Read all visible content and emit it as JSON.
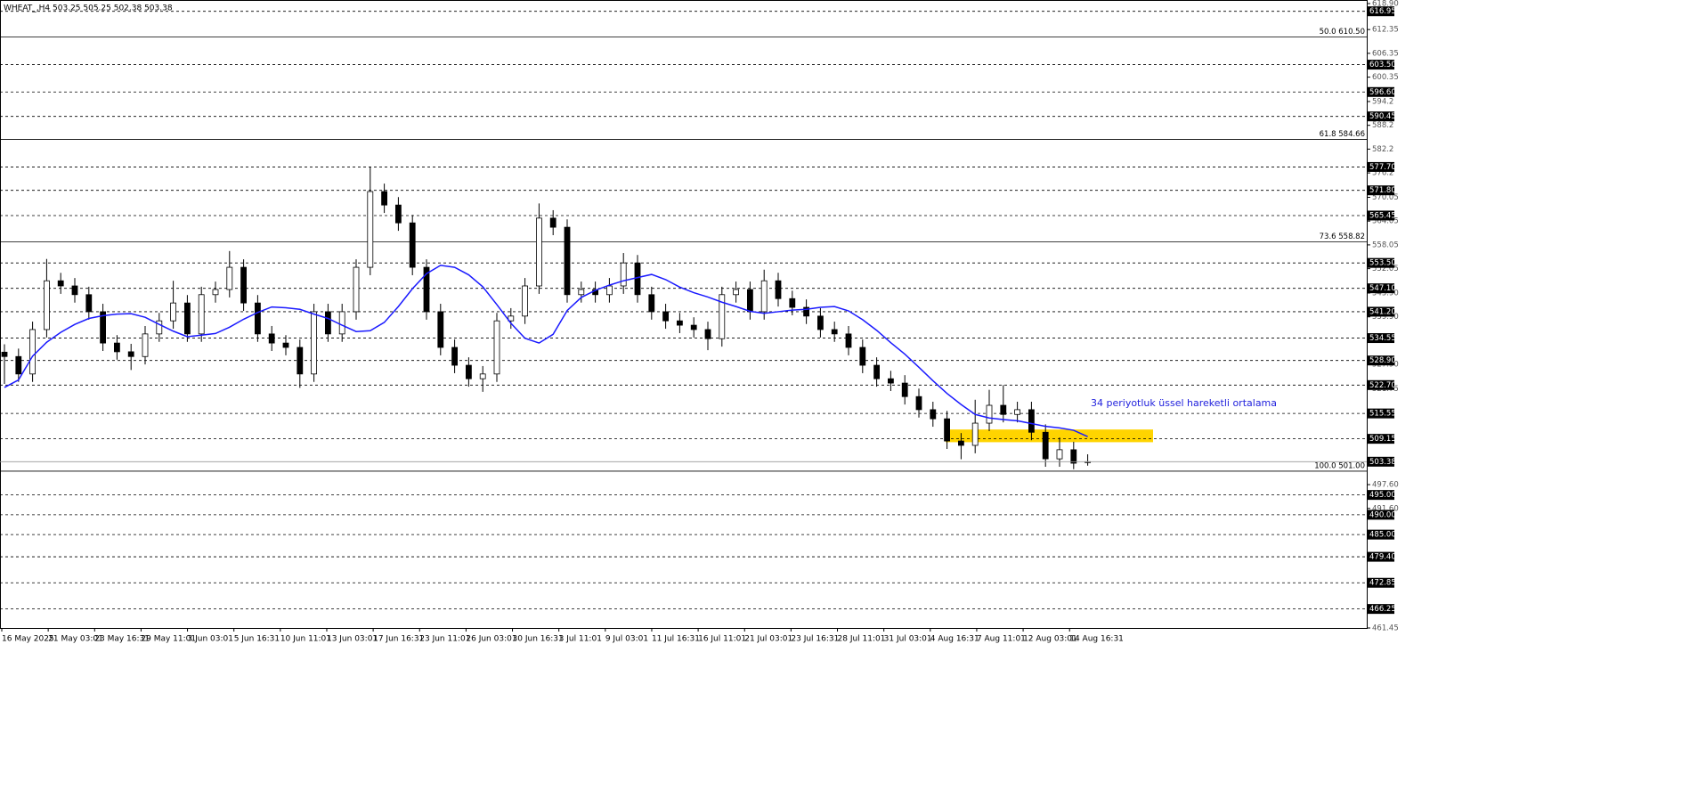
{
  "chart_data": {
    "type": "candlestick",
    "title": "WHEAT_,H4  503.25 505.25 502.38 503.38",
    "ylim": [
      461.45,
      618.9
    ],
    "yticks": [
      {
        "value": 618.9,
        "label": "618.90"
      },
      612.35,
      606.35,
      600.35,
      594.2,
      588.2,
      582.2,
      576.2,
      570.05,
      564.05,
      558.05,
      552.05,
      {
        "value": 545.9,
        "label": "545.90"
      },
      {
        "value": 539.9,
        "label": "539.90"
      },
      {
        "value": 527.9,
        "label": "527.90"
      },
      521.75,
      {
        "value": 497.6,
        "label": "497.60"
      },
      {
        "value": 491.6,
        "label": "491.60"
      },
      461.45
    ],
    "xticks": [
      {
        "value": 0,
        "label": "16 May 2025"
      },
      {
        "value": 3.3,
        "label": "21 May 03:01"
      },
      {
        "value": 6.6,
        "label": "23 May 16:31"
      },
      {
        "value": 9.9,
        "label": "29 May 11:01"
      },
      {
        "value": 13.2,
        "label": "3 Jun 03:01"
      },
      {
        "value": 16.5,
        "label": "5 Jun 16:31"
      },
      {
        "value": 19.8,
        "label": "10 Jun 11:01"
      },
      {
        "value": 23.1,
        "label": "13 Jun 03:01"
      },
      {
        "value": 26.4,
        "label": "17 Jun 16:31"
      },
      {
        "value": 29.7,
        "label": "23 Jun 11:01"
      },
      {
        "value": 33,
        "label": "26 Jun 03:01"
      },
      {
        "value": 36.3,
        "label": "30 Jun 16:31"
      },
      {
        "value": 39.6,
        "label": "3 Jul 11:01"
      },
      {
        "value": 42.9,
        "label": "9 Jul 03:01"
      },
      {
        "value": 46.2,
        "label": "11 Jul 16:31"
      },
      {
        "value": 49.5,
        "label": "16 Jul 11:01"
      },
      {
        "value": 52.8,
        "label": "21 Jul 03:01"
      },
      {
        "value": 56.1,
        "label": "23 Jul 16:31"
      },
      {
        "value": 59.4,
        "label": "28 Jul 11:01"
      },
      {
        "value": 62.7,
        "label": "31 Jul 03:01"
      },
      {
        "value": 66,
        "label": "4 Aug 16:31"
      },
      {
        "value": 69.3,
        "label": "7 Aug 11:01"
      },
      {
        "value": 72.6,
        "label": "12 Aug 03:01"
      },
      {
        "value": 75.9,
        "label": "14 Aug 16:31"
      }
    ],
    "open": [
      531.0,
      529.9,
      525.5,
      536.7,
      549.0,
      547.7,
      545.5,
      541.2,
      533.3,
      531.1,
      529.9,
      535.6,
      538.9,
      543.4,
      535.6,
      545.5,
      546.8,
      552.4,
      543.4,
      535.6,
      533.3,
      532.2,
      525.5,
      541.2,
      535.6,
      541.2,
      552.4,
      571.5,
      568.1,
      563.6,
      552.4,
      541.2,
      532.2,
      527.7,
      524.3,
      525.5,
      538.9,
      540.1,
      547.7,
      564.8,
      562.5,
      545.5,
      546.8,
      545.5,
      547.7,
      553.5,
      545.5,
      541.2,
      538.9,
      537.8,
      536.7,
      534.4,
      545.5,
      546.8,
      541.2,
      549.0,
      544.5,
      542.3,
      540.1,
      536.7,
      535.6,
      532.2,
      527.7,
      524.3,
      523.2,
      519.8,
      516.5,
      514.2,
      508.6,
      507.5,
      513.1,
      517.6,
      515.3,
      516.5,
      510.8,
      504.1,
      506.4,
      503.25
    ],
    "high": [
      533.0,
      531.9,
      538.7,
      554.5,
      551.0,
      549.7,
      547.5,
      543.2,
      535.3,
      533.1,
      537.6,
      540.9,
      549.0,
      545.4,
      547.5,
      548.8,
      556.5,
      554.4,
      545.4,
      537.6,
      535.3,
      534.2,
      543.2,
      543.2,
      543.2,
      554.4,
      577.7,
      573.5,
      570.1,
      565.6,
      554.4,
      543.2,
      534.2,
      529.7,
      527.5,
      540.9,
      542.1,
      549.7,
      568.5,
      566.8,
      564.5,
      548.8,
      548.8,
      549.7,
      556.0,
      555.5,
      547.5,
      543.2,
      540.9,
      539.8,
      538.7,
      547.5,
      548.8,
      548.8,
      551.8,
      551.0,
      546.5,
      544.3,
      542.1,
      538.7,
      537.6,
      534.2,
      529.7,
      526.3,
      525.2,
      521.8,
      518.5,
      516.2,
      510.6,
      519.0,
      521.5,
      522.7,
      518.5,
      518.5,
      512.8,
      509.5,
      508.4,
      505.25
    ],
    "low": [
      523.0,
      523.5,
      523.5,
      534.7,
      545.7,
      543.5,
      539.2,
      531.3,
      529.1,
      526.5,
      527.9,
      533.6,
      536.9,
      533.6,
      533.6,
      543.5,
      544.8,
      541.4,
      533.6,
      531.3,
      530.2,
      522.0,
      523.5,
      533.6,
      533.6,
      539.2,
      550.4,
      566.1,
      561.6,
      550.4,
      539.2,
      530.2,
      525.7,
      522.3,
      521.0,
      523.5,
      536.9,
      538.1,
      545.7,
      560.5,
      543.5,
      543.5,
      543.5,
      543.5,
      545.7,
      543.5,
      539.2,
      536.9,
      535.8,
      534.7,
      531.5,
      532.4,
      543.5,
      539.2,
      539.2,
      542.5,
      540.3,
      538.1,
      534.7,
      533.6,
      530.2,
      525.7,
      522.3,
      521.2,
      517.8,
      514.5,
      512.2,
      506.6,
      504.0,
      505.5,
      511.1,
      513.3,
      513.3,
      508.8,
      502.1,
      502.1,
      501.5,
      502.38
    ],
    "close": [
      529.9,
      525.5,
      536.7,
      549.0,
      547.7,
      545.5,
      541.2,
      533.3,
      531.1,
      529.9,
      535.6,
      538.9,
      543.4,
      535.6,
      545.5,
      546.8,
      552.4,
      543.4,
      535.6,
      533.3,
      532.2,
      525.5,
      541.2,
      535.6,
      541.2,
      552.4,
      571.5,
      568.1,
      563.6,
      552.4,
      541.2,
      532.2,
      527.7,
      524.3,
      525.5,
      538.9,
      540.1,
      547.7,
      564.8,
      562.5,
      545.5,
      546.8,
      545.5,
      547.7,
      553.5,
      545.5,
      541.2,
      538.9,
      537.8,
      536.7,
      534.4,
      545.5,
      546.8,
      541.2,
      549.0,
      544.5,
      542.3,
      540.1,
      536.7,
      535.6,
      532.2,
      527.7,
      524.3,
      523.2,
      519.8,
      516.5,
      514.2,
      508.6,
      507.5,
      513.1,
      517.6,
      515.3,
      516.5,
      510.8,
      504.1,
      506.4,
      503.0,
      503.38
    ],
    "ema": {
      "name": "34 periyotluk üssel hareketli ortalama",
      "color": "#1a1aff",
      "values": [
        522.1,
        524,
        530,
        533.5,
        536,
        538,
        539.5,
        540.2,
        540.6,
        540.7,
        539.8,
        538,
        536.3,
        534.9,
        535.3,
        535.7,
        537.3,
        539.3,
        541,
        542.4,
        542.2,
        541.8,
        540.6,
        539.5,
        537.8,
        536.2,
        536.4,
        538.5,
        542.5,
        547,
        550.8,
        552.9,
        552.4,
        550.5,
        547.5,
        543,
        538.3,
        534.5,
        533.3,
        535.5,
        541.5,
        544.8,
        546.6,
        547.9,
        549,
        549.8,
        550.6,
        549.3,
        547.4,
        546,
        544.9,
        543.6,
        542.5,
        541.3,
        540.8,
        541.2,
        541.6,
        541.8,
        542.3,
        542.5,
        541.4,
        539.2,
        536.5,
        533.4,
        530.5,
        527.2,
        523.8,
        520.6,
        517.8,
        515.3,
        514.4,
        514,
        513.7,
        513,
        512.3,
        511.9,
        511.3,
        509.7
      ]
    },
    "levels": [
      {
        "value": 616.95,
        "label": "616.95"
      },
      {
        "value": 603.5,
        "label": "603.50"
      },
      {
        "value": 596.6,
        "label": "596.60"
      },
      {
        "value": 590.45,
        "label": "590.45"
      },
      {
        "value": 577.7,
        "label": "577.70"
      },
      {
        "value": 571.8,
        "label": "571.80"
      },
      {
        "value": 565.45,
        "label": "565.45"
      },
      {
        "value": 553.5,
        "label": "553.50"
      },
      {
        "value": 547.1,
        "label": "547.10"
      },
      {
        "value": 541.2,
        "label": "541.20"
      },
      {
        "value": 534.55,
        "label": "534.55"
      },
      {
        "value": 528.9,
        "label": "528.90"
      },
      {
        "value": 522.7,
        "label": "522.70"
      },
      {
        "value": 515.55,
        "label": "515.55"
      },
      {
        "value": 509.15,
        "label": "509.15"
      },
      {
        "value": 495,
        "label": "495.00"
      },
      {
        "value": 490,
        "label": "490.00"
      },
      {
        "value": 485,
        "label": "485.00"
      },
      {
        "value": 479.4,
        "label": "479.40"
      },
      {
        "value": 472.85,
        "label": "472.85"
      },
      {
        "value": 466.25,
        "label": "466.25"
      }
    ],
    "fib_levels": [
      {
        "value": 610.5,
        "label": "50.0 610.50"
      },
      {
        "value": 584.66,
        "label": "61.8 584.66"
      },
      {
        "value": 558.82,
        "label": "73.6 558.82"
      },
      {
        "value": 501,
        "label": "100.0 501.00"
      }
    ],
    "zone": {
      "low": 508.3,
      "high": 511.5,
      "color": "#ffd400"
    }
  }
}
